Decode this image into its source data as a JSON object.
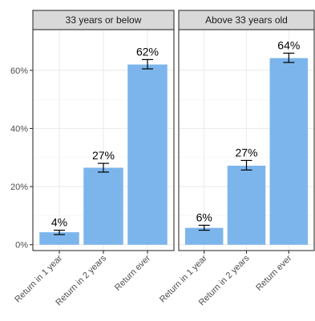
{
  "chart_data": {
    "type": "bar",
    "ylim": [
      -0.02,
      0.74
    ],
    "yticks": [
      0,
      0.2,
      0.4,
      0.6
    ],
    "ytick_labels": [
      "0%",
      "20%",
      "40%",
      "60%"
    ],
    "categories": [
      "Return in 1 year",
      "Return in 2 years",
      "Return ever"
    ],
    "grid": true,
    "legend": "none",
    "bar_color": "#7cb5ec",
    "panels": [
      {
        "title": "33 years or below",
        "values": [
          0.043,
          0.265,
          0.62
        ],
        "error_low": [
          0.035,
          0.25,
          0.605
        ],
        "error_high": [
          0.05,
          0.28,
          0.637
        ],
        "labels": [
          "4%",
          "27%",
          "62%"
        ]
      },
      {
        "title": "Above 33 years old",
        "values": [
          0.058,
          0.272,
          0.642
        ],
        "error_low": [
          0.05,
          0.257,
          0.627
        ],
        "error_high": [
          0.067,
          0.29,
          0.659
        ],
        "labels": [
          "6%",
          "27%",
          "64%"
        ]
      }
    ],
    "xlabel": "",
    "ylabel": ""
  }
}
